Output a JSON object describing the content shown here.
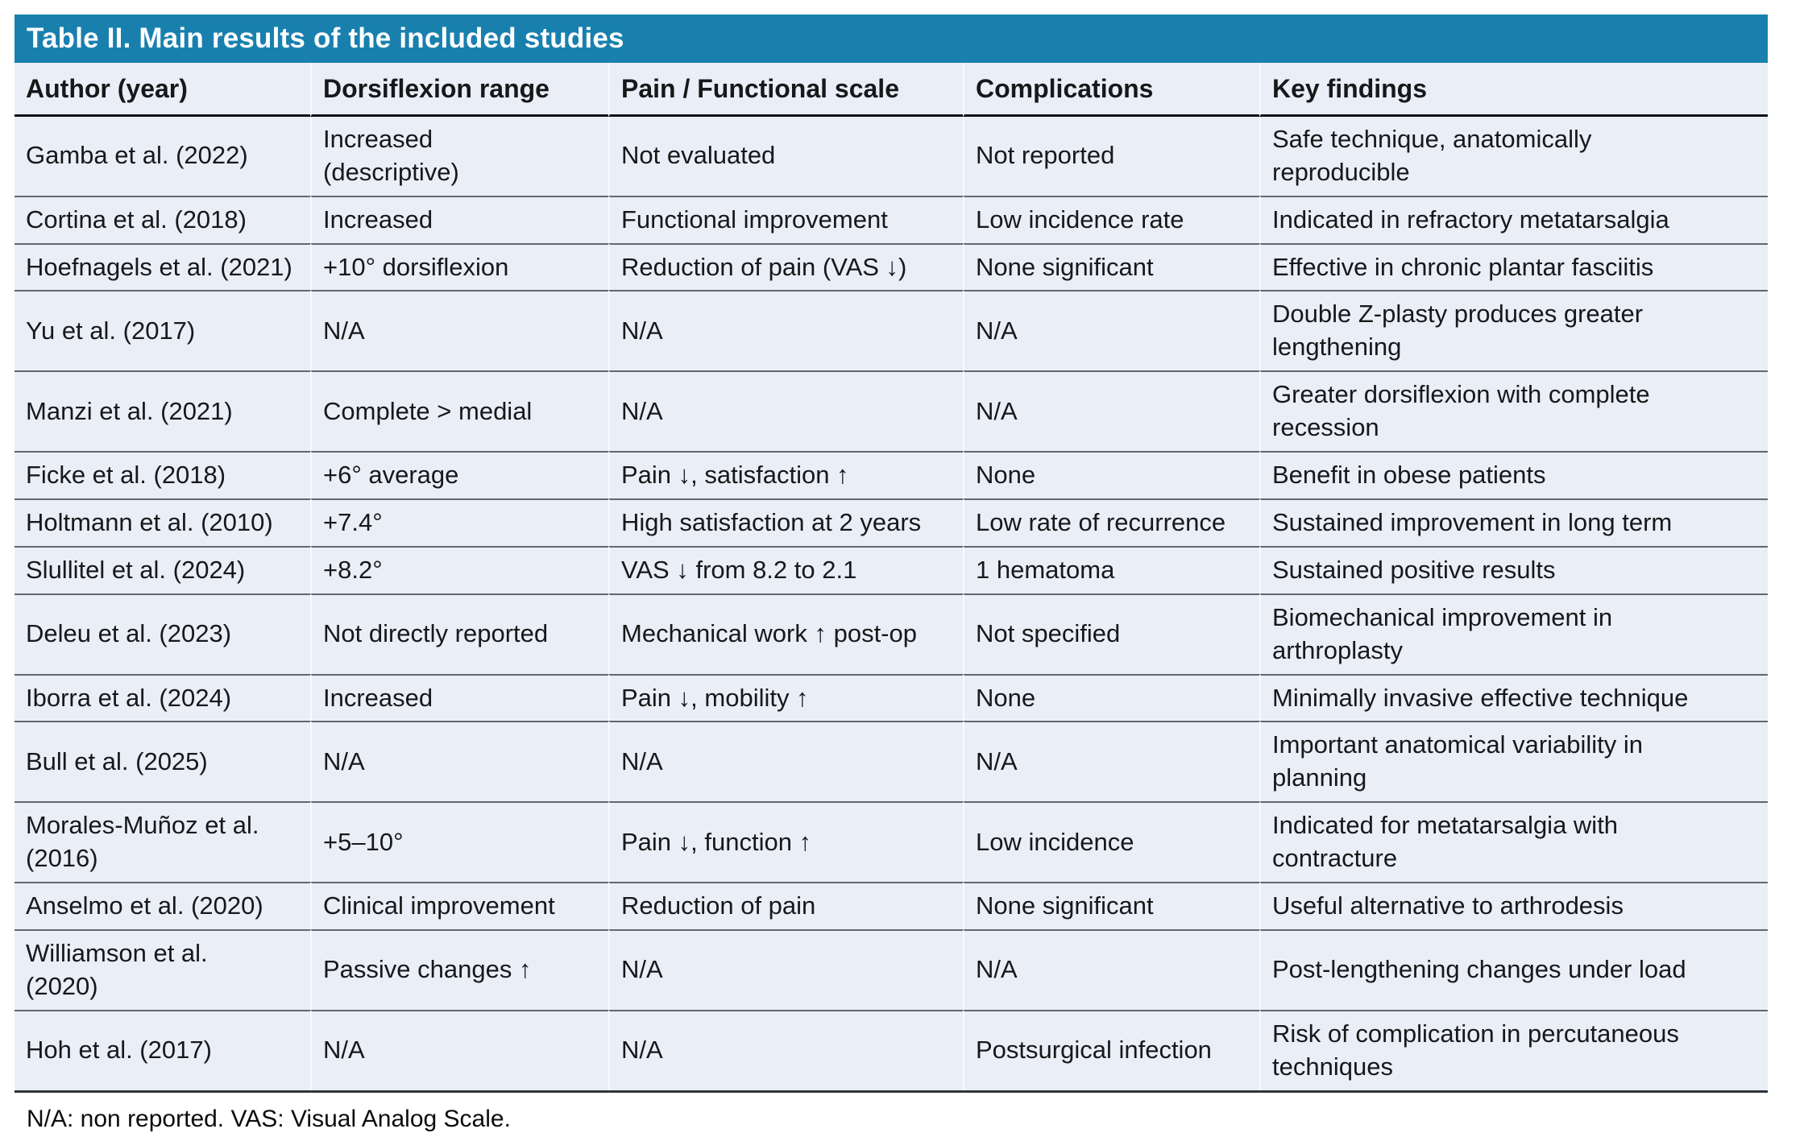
{
  "table": {
    "title": "Table II. Main results of the included studies",
    "columns": [
      "Author (year)",
      "Dorsiflexion range",
      "Pain / Functional scale",
      "Complications",
      "Key findings"
    ],
    "rows": [
      {
        "author": "Gamba et al. (2022)",
        "dorsiflexion": "Increased\n(descriptive)",
        "pain_scale": "Not evaluated",
        "complications": "Not reported",
        "key_findings": "Safe technique, anatomically\nreproducible"
      },
      {
        "author": "Cortina et al. (2018)",
        "dorsiflexion": "Increased",
        "pain_scale": "Functional improvement",
        "complications": "Low incidence rate",
        "key_findings": "Indicated in refractory metatarsalgia"
      },
      {
        "author": "Hoefnagels et al. (2021)",
        "dorsiflexion": "+10° dorsiflexion",
        "pain_scale": "Reduction of pain (VAS ↓)",
        "complications": "None significant",
        "key_findings": "Effective in chronic plantar fasciitis"
      },
      {
        "author": "Yu et al. (2017)",
        "dorsiflexion": "N/A",
        "pain_scale": "N/A",
        "complications": "N/A",
        "key_findings": "Double Z-plasty produces greater\nlengthening"
      },
      {
        "author": "Manzi et al. (2021)",
        "dorsiflexion": "Complete > medial",
        "pain_scale": "N/A",
        "complications": "N/A",
        "key_findings": "Greater dorsiflexion with complete\nrecession"
      },
      {
        "author": "Ficke et al. (2018)",
        "dorsiflexion": "+6° average",
        "pain_scale": "Pain ↓, satisfaction ↑",
        "complications": "None",
        "key_findings": "Benefit in obese patients"
      },
      {
        "author": "Holtmann et al. (2010)",
        "dorsiflexion": "+7.4°",
        "pain_scale": "High satisfaction at 2 years",
        "complications": "Low rate of recurrence",
        "key_findings": "Sustained improvement in long term"
      },
      {
        "author": "Slullitel et al. (2024)",
        "dorsiflexion": "+8.2°",
        "pain_scale": "VAS ↓ from 8.2 to 2.1",
        "complications": "1 hematoma",
        "key_findings": "Sustained positive results"
      },
      {
        "author": "Deleu et al. (2023)",
        "dorsiflexion": "Not directly reported",
        "pain_scale": "Mechanical work ↑ post-op",
        "complications": "Not specified",
        "key_findings": "Biomechanical improvement in\narthroplasty"
      },
      {
        "author": "Iborra et al. (2024)",
        "dorsiflexion": "Increased",
        "pain_scale": "Pain ↓, mobility ↑",
        "complications": "None",
        "key_findings": "Minimally invasive effective technique"
      },
      {
        "author": "Bull et al. (2025)",
        "dorsiflexion": "N/A",
        "pain_scale": "N/A",
        "complications": "N/A",
        "key_findings": "Important anatomical variability in\nplanning"
      },
      {
        "author": "Morales-Muñoz et al.\n(2016)",
        "dorsiflexion": "+5–10°",
        "pain_scale": "Pain ↓, function ↑",
        "complications": "Low incidence",
        "key_findings": "Indicated for metatarsalgia with\ncontracture"
      },
      {
        "author": "Anselmo et al. (2020)",
        "dorsiflexion": "Clinical improvement",
        "pain_scale": "Reduction of pain",
        "complications": "None significant",
        "key_findings": "Useful alternative to arthrodesis"
      },
      {
        "author": "Williamson et al.\n(2020)",
        "dorsiflexion": "Passive changes ↑",
        "pain_scale": "N/A",
        "complications": "N/A",
        "key_findings": "Post-lengthening changes under load"
      },
      {
        "author": "Hoh et al. (2017)",
        "dorsiflexion": "N/A",
        "pain_scale": "N/A",
        "complications": "Postsurgical infection",
        "key_findings": "Risk of complication in percutaneous\ntechniques"
      }
    ],
    "footnote": "N/A: non reported. VAS: Visual Analog Scale.",
    "colors": {
      "title_bar": "#1980ae",
      "title_text": "#ffffff",
      "row_background": "#eaeef6",
      "row_divider": "#62666d",
      "header_underline": "#101114",
      "table_bottom_border": "#30343a",
      "body_text": "#17181a"
    }
  }
}
